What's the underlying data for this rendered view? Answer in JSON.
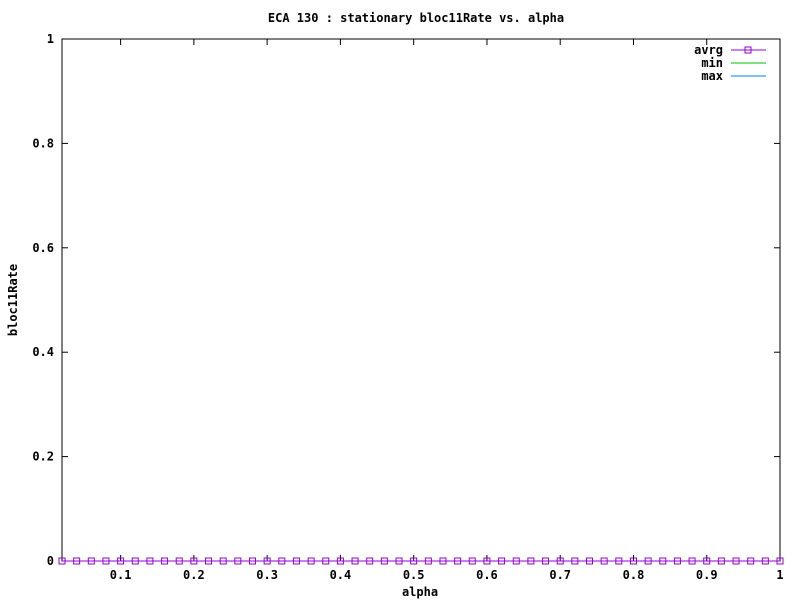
{
  "chart_data": {
    "type": "line",
    "title": "ECA 130 : stationary bloc11Rate vs. alpha",
    "xlabel": "alpha",
    "ylabel": "bloc11Rate",
    "xlim": [
      0.02,
      1
    ],
    "ylim": [
      0,
      1
    ],
    "xticks": [
      0.1,
      0.2,
      0.3,
      0.4,
      0.5,
      0.6,
      0.7,
      0.8,
      0.9,
      1
    ],
    "xtick_labels": [
      "0.1",
      "0.2",
      "0.3",
      "0.4",
      "0.5",
      "0.6",
      "0.7",
      "0.8",
      "0.9",
      "1"
    ],
    "yticks": [
      0,
      0.2,
      0.4,
      0.6,
      0.8,
      1
    ],
    "ytick_labels": [
      "0",
      "0.2",
      "0.4",
      "0.6",
      "0.8",
      "1"
    ],
    "grid": false,
    "legend_position": "top-right",
    "x": [
      0.02,
      0.04,
      0.06,
      0.08,
      0.1,
      0.12,
      0.14,
      0.16,
      0.18,
      0.2,
      0.22,
      0.24,
      0.26,
      0.28,
      0.3,
      0.32,
      0.34,
      0.36,
      0.38,
      0.4,
      0.42,
      0.44,
      0.46,
      0.48,
      0.5,
      0.52,
      0.54,
      0.56,
      0.58,
      0.6,
      0.62,
      0.64,
      0.66,
      0.68,
      0.7,
      0.72,
      0.74,
      0.76,
      0.78,
      0.8,
      0.82,
      0.84,
      0.86,
      0.88,
      0.9,
      0.92,
      0.94,
      0.96,
      0.98,
      1
    ],
    "series": [
      {
        "name": "avrg",
        "color": "#9400d3",
        "marker": "square",
        "values": "zeros"
      },
      {
        "name": "min",
        "color": "#00c000",
        "marker": "none",
        "values": "zeros"
      },
      {
        "name": "max",
        "color": "#0080ff",
        "marker": "none",
        "values": "zeros"
      }
    ]
  }
}
